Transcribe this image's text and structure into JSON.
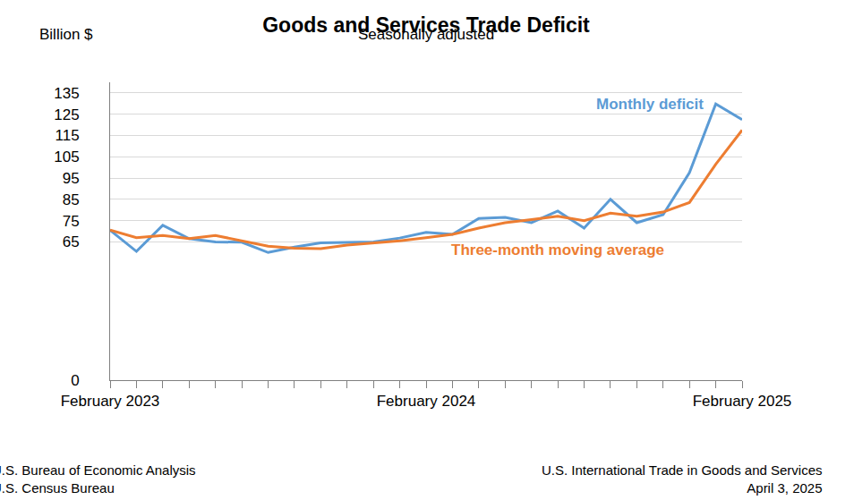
{
  "chart_data": {
    "type": "line",
    "title": "Goods and Services Trade Deficit",
    "subtitle": "Seasonally adjusted",
    "y_label": "Billion $",
    "categories": [
      "February 2023",
      null,
      null,
      null,
      null,
      null,
      null,
      null,
      null,
      null,
      null,
      null,
      "February 2024",
      null,
      null,
      null,
      null,
      null,
      null,
      null,
      null,
      null,
      null,
      null,
      "February 2025"
    ],
    "series": [
      {
        "name": "Monthly deficit",
        "color": "#5b9bd5",
        "line_style": "solid",
        "values": [
          70.5,
          60.5,
          72.8,
          66.5,
          65.0,
          64.8,
          60.0,
          62.5,
          64.5,
          64.8,
          65.0,
          66.8,
          69.5,
          68.5,
          76.0,
          76.5,
          74.0,
          79.5,
          71.5,
          85.0,
          74.0,
          77.8,
          97.5,
          129.8,
          122.5
        ]
      },
      {
        "name": "Three-month moving average",
        "color": "#ed7d31",
        "line_style": "solid",
        "values": [
          70.5,
          67.0,
          68.0,
          66.5,
          68.0,
          65.5,
          63.0,
          62.0,
          61.8,
          63.5,
          64.5,
          65.5,
          67.0,
          68.5,
          71.5,
          74.0,
          75.5,
          77.0,
          75.0,
          78.5,
          77.0,
          79.0,
          83.5,
          101.5,
          117.5
        ]
      }
    ],
    "ylim": [
      0,
      140
    ],
    "yticks": [
      0,
      65,
      75,
      85,
      95,
      105,
      115,
      125,
      135
    ],
    "grid": true,
    "footnotes": {
      "left": [
        "U.S. Bureau of Economic Analysis",
        "U.S. Census Bureau"
      ],
      "right": [
        "U.S. International Trade in Goods and Services",
        "April 3, 2025"
      ]
    }
  }
}
